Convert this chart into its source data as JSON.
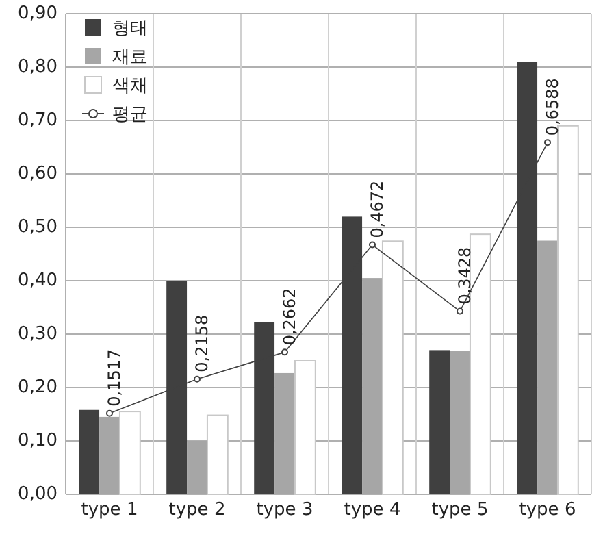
{
  "chart_data": {
    "type": "bar",
    "categories": [
      "type 1",
      "type 2",
      "type 3",
      "type 4",
      "type 5",
      "type 6"
    ],
    "series": [
      {
        "name": "형태",
        "color": "#404040",
        "values": [
          0.158,
          0.4,
          0.322,
          0.52,
          0.27,
          0.81
        ]
      },
      {
        "name": "재료",
        "color": "#a6a6a6",
        "values": [
          0.145,
          0.1,
          0.227,
          0.405,
          0.268,
          0.475
        ]
      },
      {
        "name": "색채",
        "color": "#ffffff",
        "values": [
          0.155,
          0.148,
          0.25,
          0.474,
          0.487,
          0.69
        ]
      },
      {
        "name": "평균",
        "type": "line",
        "color": "#404040",
        "marker": "circle",
        "values": [
          0.1517,
          0.2158,
          0.2662,
          0.4672,
          0.3428,
          0.6588
        ],
        "value_labels": [
          "0,1517",
          "0,2158",
          "0,2662",
          "0,4672",
          "0,3428",
          "0,6588"
        ]
      }
    ],
    "ylim": [
      0,
      0.9
    ],
    "yticks": [
      {
        "value": 0,
        "label": "0,00"
      },
      {
        "value": 0.1,
        "label": "0,10"
      },
      {
        "value": 0.2,
        "label": "0,20"
      },
      {
        "value": 0.3,
        "label": "0,30"
      },
      {
        "value": 0.4,
        "label": "0,40"
      },
      {
        "value": 0.5,
        "label": "0,50"
      },
      {
        "value": 0.6,
        "label": "0,60"
      },
      {
        "value": 0.7,
        "label": "0,70"
      },
      {
        "value": 0.8,
        "label": "0,80"
      },
      {
        "value": 0.9,
        "label": "0,90"
      }
    ],
    "grid": true,
    "legend": "top left"
  }
}
